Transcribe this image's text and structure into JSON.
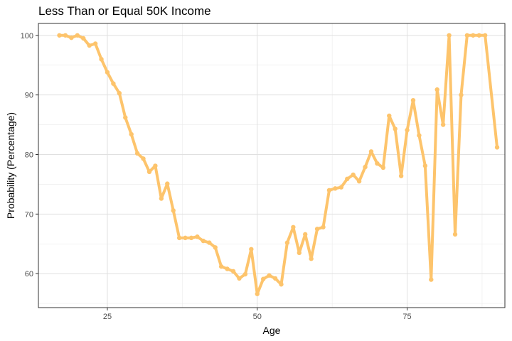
{
  "chart_data": {
    "type": "line",
    "title": "Less Than or Equal 50K Income",
    "xlabel": "Age",
    "ylabel": "Probability (Percentage)",
    "xlim": [
      13.5,
      91.3
    ],
    "ylim": [
      54.3,
      102.0
    ],
    "x_ticks": [
      25,
      50,
      75
    ],
    "x_tick_labels": [
      "25",
      "50",
      "75"
    ],
    "y_ticks": [
      60,
      70,
      80,
      90,
      100
    ],
    "y_tick_labels": [
      "60",
      "70",
      "80",
      "90",
      "100"
    ],
    "grid": true,
    "legend": "none",
    "series": [
      {
        "color": "#FDC46C",
        "x": [
          17,
          18,
          19,
          20,
          21,
          22,
          23,
          24,
          25,
          26,
          27,
          28,
          29,
          30,
          31,
          32,
          33,
          34,
          35,
          36,
          37,
          38,
          39,
          40,
          41,
          42,
          43,
          44,
          45,
          46,
          47,
          48,
          49,
          50,
          51,
          52,
          53,
          54,
          55,
          56,
          57,
          58,
          59,
          60,
          61,
          62,
          63,
          64,
          65,
          66,
          67,
          68,
          69,
          70,
          71,
          72,
          73,
          74,
          75,
          76,
          77,
          78,
          79,
          80,
          81,
          82,
          83,
          84,
          85,
          86,
          87,
          88,
          90
        ],
        "values": [
          100,
          100,
          99.6,
          100,
          99.5,
          98.3,
          98.6,
          96,
          93.8,
          91.9,
          90.3,
          86.2,
          83.4,
          80.2,
          79.3,
          77.1,
          78.1,
          72.6,
          75.1,
          70.6,
          66,
          66,
          66,
          66.2,
          65.5,
          65.2,
          64.4,
          61.2,
          60.8,
          60.4,
          59.2,
          59.9,
          64.1,
          56.6,
          59.1,
          59.7,
          59.2,
          58.2,
          65.2,
          67.8,
          63.5,
          66.6,
          62.5,
          67.5,
          67.8,
          74,
          74.3,
          74.5,
          75.9,
          76.6,
          75.5,
          77.9,
          80.5,
          78.5,
          77.8,
          86.5,
          84.3,
          76.4,
          84.1,
          89.1,
          83.2,
          78.1,
          59,
          90.9,
          85,
          100,
          66.6,
          90,
          100,
          100,
          100,
          100,
          81.2
        ]
      }
    ]
  }
}
